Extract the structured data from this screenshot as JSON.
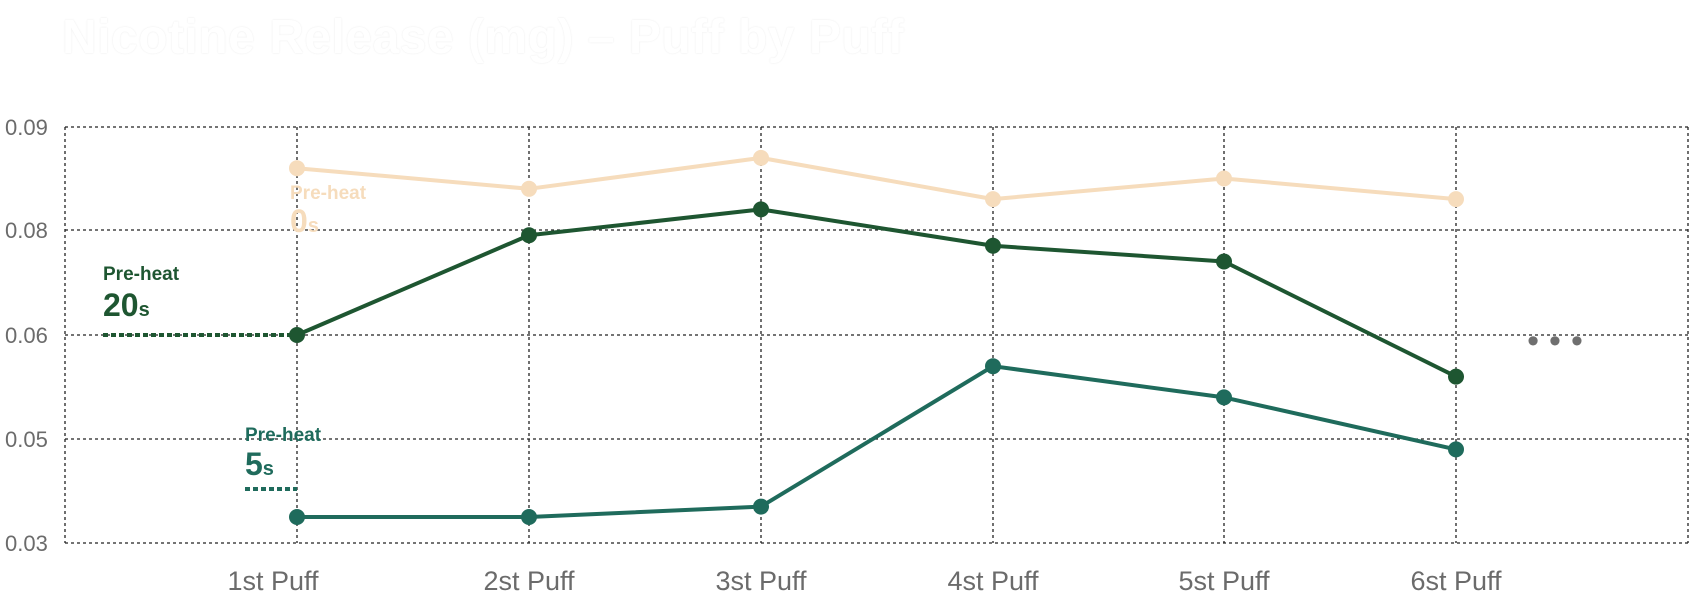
{
  "title": "Nicotine Release (mg) – Puff by Puff",
  "chart_data": {
    "type": "line",
    "title": "Nicotine Release (mg) – Puff by Puff",
    "categories": [
      "1st Puff",
      "2st Puff",
      "3st Puff",
      "4st Puff",
      "5st Puff",
      "6st Puff"
    ],
    "y_ticks": [
      "0.03",
      "0.05",
      "0.06",
      "0.08",
      "0.09"
    ],
    "grid": true,
    "series": [
      {
        "name": "Pre-heat 0s",
        "label_top": "Pre-heat",
        "label_num": "0",
        "label_unit": "s",
        "color": "#f6dcbc",
        "values": [
          0.086,
          0.084,
          0.087,
          0.083,
          0.085,
          0.083
        ]
      },
      {
        "name": "Pre-heat 20s",
        "label_top": "Pre-heat",
        "label_num": "20",
        "label_unit": "s",
        "color": "#1e5631",
        "values": [
          0.06,
          0.079,
          0.082,
          0.077,
          0.074,
          0.056
        ]
      },
      {
        "name": "Pre-heat 5s",
        "label_top": "Pre-heat",
        "label_num": "5",
        "label_unit": "s",
        "color": "#1f6b5c",
        "values": [
          0.035,
          0.035,
          0.037,
          0.057,
          0.054,
          0.048
        ]
      }
    ],
    "continuation_marker": "•••"
  }
}
